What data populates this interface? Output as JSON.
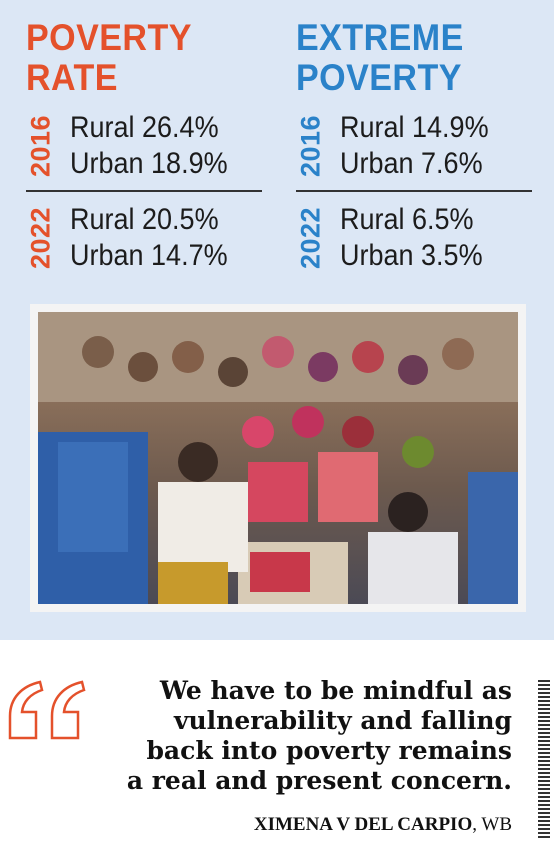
{
  "poverty_rate": {
    "title_line1": "POVERTY",
    "title_line2": "RATE",
    "y2016": {
      "year": "2016",
      "rural": "Rural 26.4%",
      "urban": "Urban 18.9%"
    },
    "y2022": {
      "year": "2022",
      "rural": "Rural 20.5%",
      "urban": "Urban 14.7%"
    }
  },
  "extreme_poverty": {
    "title_line1": "EXTREME",
    "title_line2": "POVERTY",
    "y2016": {
      "year": "2016",
      "rural": "Rural 14.9%",
      "urban": "Urban 7.6%"
    },
    "y2022": {
      "year": "2022",
      "rural": "Rural 6.5%",
      "urban": "Urban 3.5%"
    }
  },
  "quote": {
    "lines": [
      "We have to be mindful as",
      "vulnerability and falling",
      "back into poverty remains",
      "a real and present concern."
    ],
    "author": "XIMENA V DEL CARPIO",
    "org": ", WB"
  },
  "colors": {
    "accent_red": "#e4512b",
    "accent_blue": "#2a82c9",
    "panel_bg": "#dce7f5"
  }
}
